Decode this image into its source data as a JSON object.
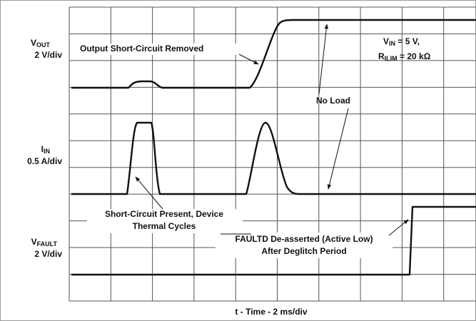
{
  "vout_label": {
    "main": "V",
    "sub": "OUT",
    "scale": "2 V/div"
  },
  "iin_label": {
    "main": "I",
    "sub": "IN",
    "scale": "0.5 A/div"
  },
  "vfault_label": {
    "main": "V",
    "sub": "FAULT",
    "scale": "2 V/div"
  },
  "conditions": {
    "vin": {
      "main": "V",
      "sub": "IN",
      "rest": " = 5 V,"
    },
    "rilim": {
      "main": "R",
      "sub": "ILIM",
      "rest": " = 20 kΩ"
    }
  },
  "annotations": {
    "removed": "Output Short-Circuit Removed",
    "no_load": "No Load",
    "present_1": "Short-Circuit Present, Device",
    "present_2": "Thermal Cycles",
    "faultd_1": "FAULTD De-asserted (Active Low)",
    "faultd_2": "After Deglitch Period"
  },
  "x_axis_label": "t - Time - 2 ms/div"
}
